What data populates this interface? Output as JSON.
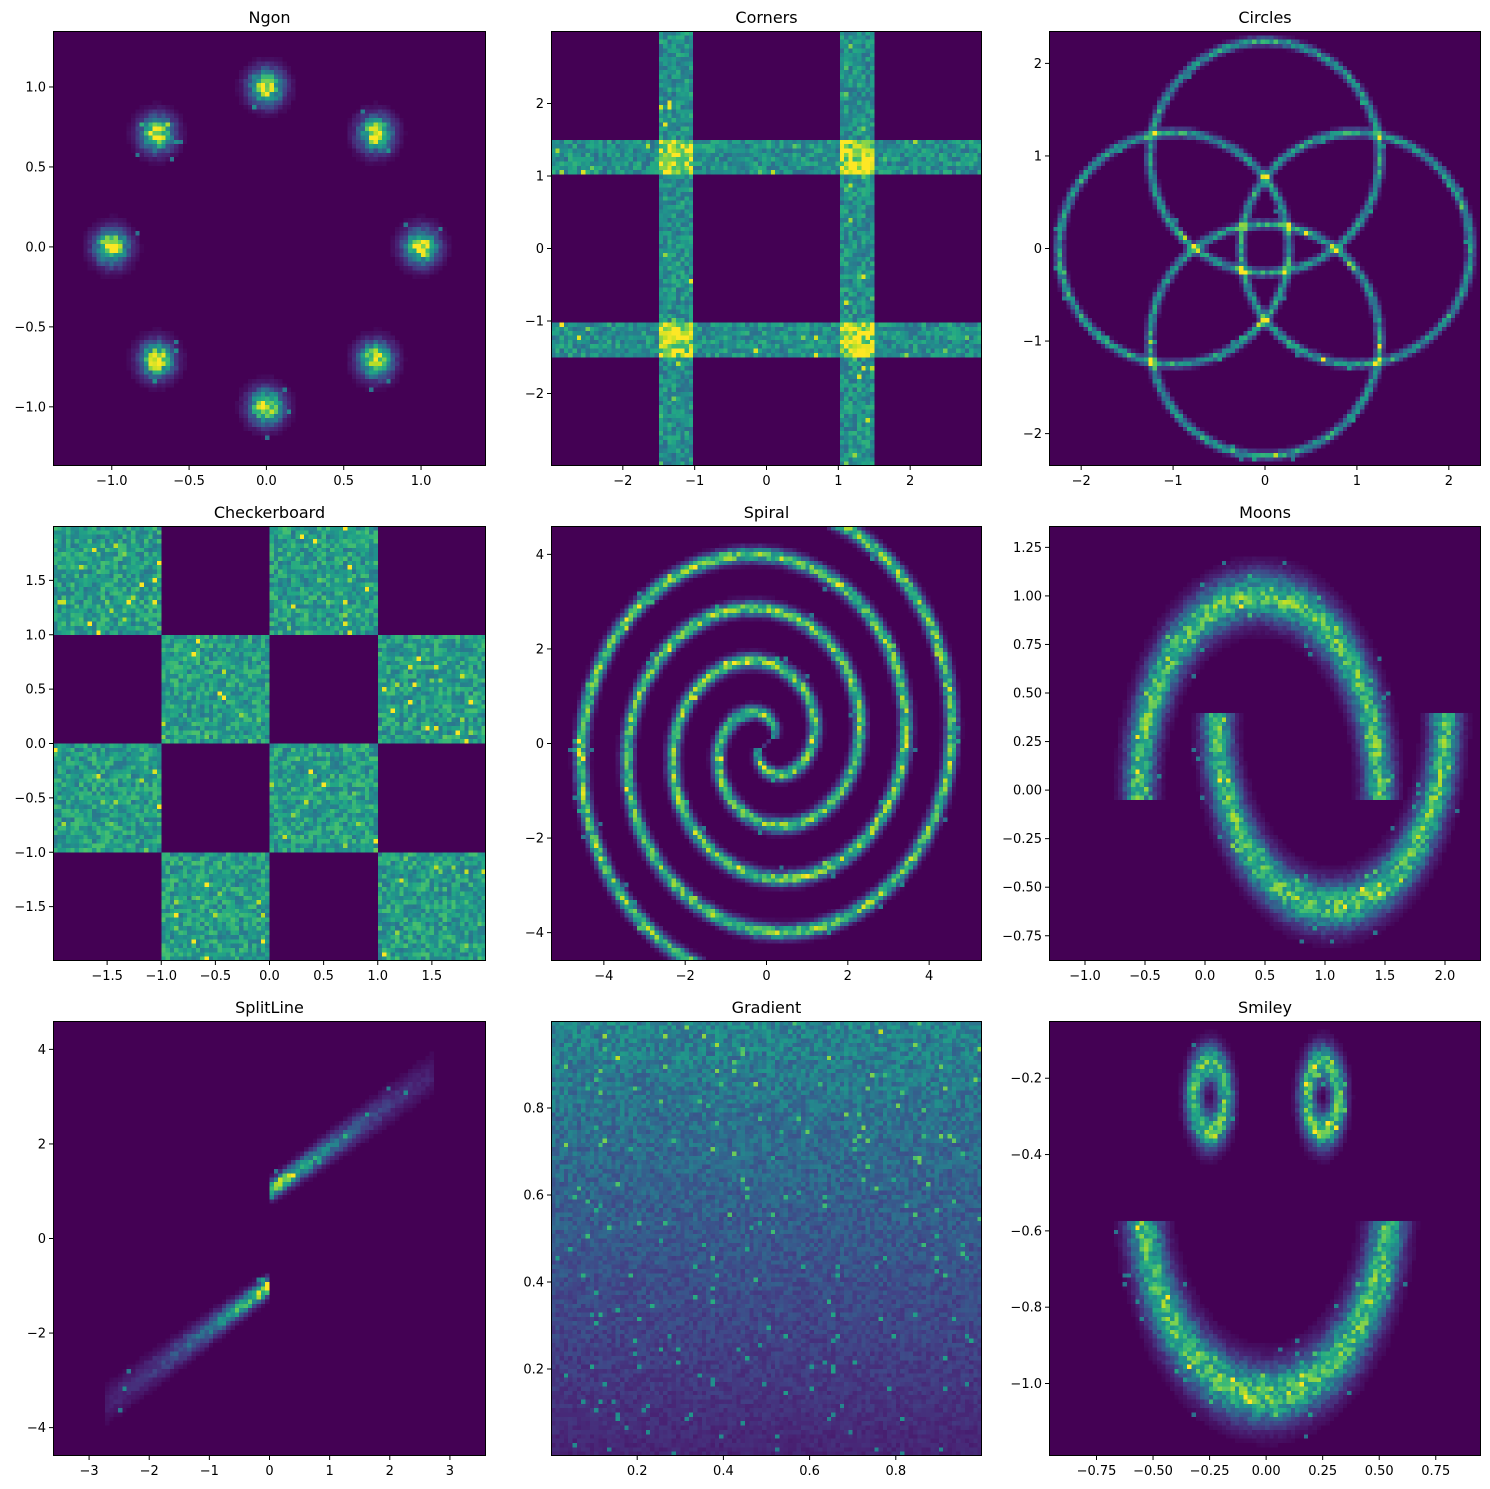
{
  "figure": {
    "background": "#ffffff"
  },
  "colormap": {
    "name": "viridis",
    "background": "#440154"
  },
  "chart_data": [
    {
      "type": "heatmap",
      "kind": "ngon",
      "title": "Ngon",
      "xlim": [
        -1.38,
        1.42
      ],
      "ylim": [
        -1.37,
        1.35
      ],
      "xticks": [
        -1.0,
        -0.5,
        0.0,
        0.5,
        1.0
      ],
      "xtick_labels": [
        "−1.0",
        "−0.5",
        "0.0",
        "0.5",
        "1.0"
      ],
      "yticks": [
        -1.0,
        -0.5,
        0.0,
        0.5,
        1.0
      ],
      "ytick_labels": [
        "−1.0",
        "−0.5",
        "0.0",
        "0.5",
        "1.0"
      ],
      "params": {
        "n": 8,
        "radius": 1.0,
        "sigma": 0.07
      }
    },
    {
      "type": "heatmap",
      "kind": "corners",
      "title": "Corners",
      "xlim": [
        -3,
        3
      ],
      "ylim": [
        -3,
        3
      ],
      "xticks": [
        -2,
        -1,
        0,
        1,
        2
      ],
      "xtick_labels": [
        "−2",
        "−1",
        "0",
        "1",
        "2"
      ],
      "yticks": [
        -2,
        -1,
        0,
        1,
        2
      ],
      "ytick_labels": [
        "−2",
        "−1",
        "0",
        "1",
        "2"
      ],
      "params": {
        "inner": 1.0,
        "width": 0.5
      }
    },
    {
      "type": "heatmap",
      "kind": "circles",
      "title": "Circles",
      "xlim": [
        -2.35,
        2.35
      ],
      "ylim": [
        -2.35,
        2.35
      ],
      "xticks": [
        -2,
        -1,
        0,
        1,
        2
      ],
      "xtick_labels": [
        "−2",
        "−1",
        "0",
        "1",
        "2"
      ],
      "yticks": [
        -2,
        -1,
        0,
        1,
        2
      ],
      "ytick_labels": [
        "−2",
        "−1",
        "0",
        "1",
        "2"
      ],
      "params": {
        "radius": 1.25,
        "offset": 0.99,
        "sigma": 0.03
      }
    },
    {
      "type": "heatmap",
      "kind": "checkerboard",
      "title": "Checkerboard",
      "xlim": [
        -2,
        2
      ],
      "ylim": [
        -2,
        2
      ],
      "xticks": [
        -1.5,
        -1.0,
        -0.5,
        0.0,
        0.5,
        1.0,
        1.5
      ],
      "xtick_labels": [
        "−1.5",
        "−1.0",
        "−0.5",
        "0.0",
        "0.5",
        "1.0",
        "1.5"
      ],
      "yticks": [
        -1.5,
        -1.0,
        -0.5,
        0.0,
        0.5,
        1.0,
        1.5
      ],
      "ytick_labels": [
        "−1.5",
        "−1.0",
        "−0.5",
        "0.0",
        "0.5",
        "1.0",
        "1.5"
      ]
    },
    {
      "type": "heatmap",
      "kind": "spiral",
      "title": "Spiral",
      "xlim": [
        -5.3,
        5.3
      ],
      "ylim": [
        -4.6,
        4.6
      ],
      "xticks": [
        -4,
        -2,
        0,
        2,
        4
      ],
      "xtick_labels": [
        "−4",
        "−2",
        "0",
        "2",
        "4"
      ],
      "yticks": [
        -4,
        -2,
        0,
        2,
        4
      ],
      "ytick_labels": [
        "−4",
        "−2",
        "0",
        "2",
        "4"
      ],
      "params": {
        "arms": 2,
        "turns": 2.2,
        "max_radius": 5.0,
        "sigma": 0.1
      }
    },
    {
      "type": "heatmap",
      "kind": "moons",
      "title": "Moons",
      "xlim": [
        -1.3,
        2.3
      ],
      "ylim": [
        -0.88,
        1.36
      ],
      "xticks": [
        -1.0,
        -0.5,
        0.0,
        0.5,
        1.0,
        1.5,
        2.0
      ],
      "xtick_labels": [
        "−1.0",
        "−0.5",
        "0.0",
        "0.5",
        "1.0",
        "1.5",
        "2.0"
      ],
      "yticks": [
        -0.75,
        -0.5,
        -0.25,
        0.0,
        0.25,
        0.5,
        0.75,
        1.0,
        1.25
      ],
      "ytick_labels": [
        "−0.75",
        "−0.50",
        "−0.25",
        "0.00",
        "0.25",
        "0.50",
        "0.75",
        "1.00",
        "1.25"
      ],
      "params": {
        "sigma": 0.08
      }
    },
    {
      "type": "heatmap",
      "kind": "splitline",
      "title": "SplitLine",
      "xlim": [
        -3.6,
        3.6
      ],
      "ylim": [
        -4.6,
        4.6
      ],
      "xticks": [
        -3,
        -2,
        -1,
        0,
        1,
        2,
        3
      ],
      "xtick_labels": [
        "−3",
        "−2",
        "−1",
        "0",
        "1",
        "2",
        "3"
      ],
      "yticks": [
        -4,
        -2,
        0,
        2,
        4
      ],
      "ytick_labels": [
        "−4",
        "−2",
        "0",
        "2",
        "4"
      ]
    },
    {
      "type": "heatmap",
      "kind": "gradient",
      "title": "Gradient",
      "xlim": [
        0.0,
        1.0
      ],
      "ylim": [
        0.0,
        1.0
      ],
      "xticks": [
        0.2,
        0.4,
        0.6,
        0.8
      ],
      "xtick_labels": [
        "0.2",
        "0.4",
        "0.6",
        "0.8"
      ],
      "yticks": [
        0.2,
        0.4,
        0.6,
        0.8
      ],
      "ytick_labels": [
        "0.2",
        "0.4",
        "0.6",
        "0.8"
      ]
    },
    {
      "type": "heatmap",
      "kind": "smiley",
      "title": "Smiley",
      "xlim": [
        -0.96,
        0.95
      ],
      "ylim": [
        -1.19,
        -0.05
      ],
      "xticks": [
        -0.75,
        -0.5,
        -0.25,
        0.0,
        0.25,
        0.5,
        0.75
      ],
      "xtick_labels": [
        "−0.75",
        "−0.50",
        "−0.25",
        "0.00",
        "0.25",
        "0.50",
        "0.75"
      ],
      "yticks": [
        -1.0,
        -0.8,
        -0.6,
        -0.4,
        -0.2
      ],
      "ytick_labels": [
        "−1.0",
        "−0.8",
        "−0.6",
        "−0.4",
        "−0.2"
      ],
      "params": {
        "eye_y": -0.25,
        "eye_x": 0.25,
        "eye_rx": 0.07,
        "eye_ry": 0.09,
        "mouth_cy": -0.48,
        "mouth_r": 0.55
      }
    }
  ]
}
